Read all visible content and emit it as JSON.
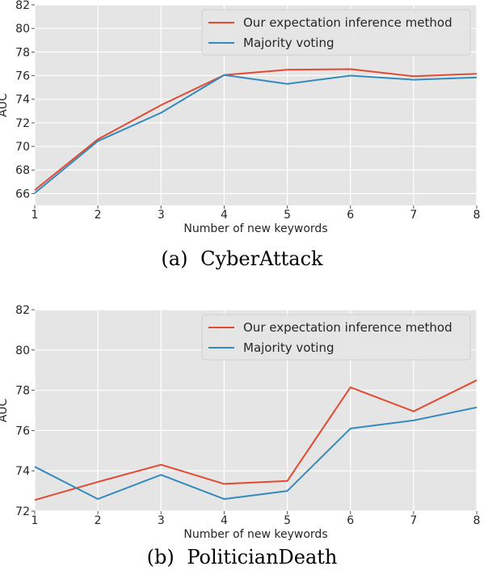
{
  "figure_a": {
    "caption_tag": "(a)",
    "caption_text": "CyberAttack"
  },
  "figure_b": {
    "caption_tag": "(b)",
    "caption_text": "PoliticianDeath"
  },
  "colors": {
    "plot_background": "#e5e5e5",
    "grid": "#ffffff",
    "series_red": "#e24a33",
    "series_blue": "#348abd"
  },
  "chart_data": [
    {
      "type": "line",
      "title": "",
      "xlabel": "Number of new keywords",
      "ylabel": "AUC",
      "x": [
        1,
        2,
        3,
        4,
        5,
        6,
        7,
        8
      ],
      "xlim": [
        1,
        8
      ],
      "ylim": [
        65,
        82
      ],
      "yticks": [
        66,
        68,
        70,
        72,
        74,
        76,
        78,
        80,
        82
      ],
      "grid": true,
      "legend_position": "top-right",
      "series": [
        {
          "name": "Our expectation inference method",
          "color": "#e24a33",
          "values": [
            66.3,
            70.6,
            73.5,
            76.05,
            76.5,
            76.55,
            75.95,
            76.15
          ]
        },
        {
          "name": "Majority voting",
          "color": "#348abd",
          "values": [
            66.05,
            70.45,
            72.85,
            76.05,
            75.3,
            76.0,
            75.65,
            75.85
          ]
        }
      ]
    },
    {
      "type": "line",
      "title": "",
      "xlabel": "Number of new keywords",
      "ylabel": "AUC",
      "x": [
        1,
        2,
        3,
        4,
        5,
        6,
        7,
        8
      ],
      "xlim": [
        1,
        8
      ],
      "ylim": [
        72,
        82
      ],
      "yticks": [
        72,
        74,
        76,
        78,
        80,
        82
      ],
      "grid": true,
      "legend_position": "top-right",
      "series": [
        {
          "name": "Our expectation inference method",
          "color": "#e24a33",
          "values": [
            72.55,
            73.45,
            74.3,
            73.35,
            73.5,
            78.15,
            76.95,
            78.5
          ]
        },
        {
          "name": "Majority voting",
          "color": "#348abd",
          "values": [
            74.2,
            72.6,
            73.8,
            72.6,
            73.0,
            76.1,
            76.5,
            77.15
          ]
        }
      ]
    }
  ]
}
